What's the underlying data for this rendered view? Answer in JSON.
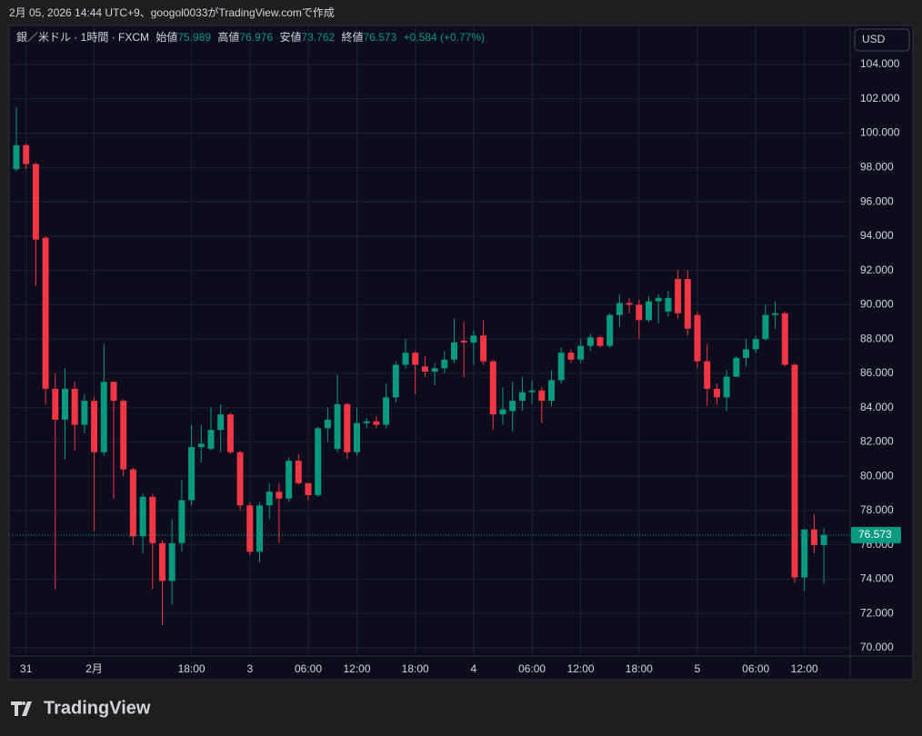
{
  "header": {
    "caption": "2月 05, 2026 14:44 UTC+9、googol0033がTradingView.comで作成",
    "logo": "TradingView"
  },
  "chart_data": {
    "type": "candlestick",
    "title": "銀／米ドル · 1時間 · FXCM",
    "legend_labels": {
      "open": "始値",
      "high": "高値",
      "low": "安値",
      "close": "終値"
    },
    "change": "+0.584 (+0.77%)",
    "currency": "USD",
    "up_color": "#089981",
    "down_color": "#f23645",
    "grid": true,
    "categories": [
      null,
      "31",
      null,
      null,
      null,
      null,
      null,
      null,
      "2月",
      null,
      null,
      null,
      null,
      null,
      null,
      null,
      null,
      null,
      "18:00",
      null,
      null,
      null,
      null,
      null,
      "3",
      null,
      null,
      null,
      null,
      null,
      "06:00",
      null,
      null,
      null,
      null,
      "12:00",
      null,
      null,
      null,
      null,
      null,
      "18:00",
      null,
      null,
      null,
      null,
      null,
      "4",
      null,
      null,
      null,
      null,
      null,
      "06:00",
      null,
      null,
      null,
      null,
      "12:00",
      null,
      null,
      null,
      null,
      null,
      "18:00",
      null,
      null,
      null,
      null,
      null,
      "5",
      null,
      null,
      null,
      null,
      null,
      "06:00",
      null,
      null,
      null,
      null,
      "12:00",
      null,
      null
    ],
    "open": [
      97.9,
      99.3,
      98.2,
      93.9,
      85.1,
      83.3,
      85.1,
      83.0,
      84.4,
      81.4,
      85.5,
      84.4,
      80.4,
      76.5,
      78.8,
      76.1,
      73.9,
      76.1,
      78.6,
      81.7,
      81.6,
      82.7,
      83.6,
      81.4,
      78.3,
      75.6,
      78.3,
      79.1,
      78.7,
      80.9,
      79.6,
      78.9,
      82.8,
      81.6,
      84.2,
      81.4,
      83.1,
      83.2,
      83.0,
      84.6,
      86.5,
      87.2,
      86.4,
      86.1,
      86.3,
      86.8,
      87.9,
      87.8,
      88.2,
      86.7,
      83.6,
      83.8,
      84.4,
      84.9,
      85.0,
      84.4,
      85.6,
      87.2,
      86.8,
      87.6,
      88.1,
      87.6,
      89.4,
      90.1,
      90.0,
      89.1,
      90.2,
      89.6,
      91.5,
      91.5,
      89.4,
      86.7,
      85.1,
      84.6,
      85.8,
      86.9,
      87.4,
      88.0,
      89.4,
      89.5,
      86.5,
      74.1,
      76.9,
      75.989
    ],
    "high": [
      101.5,
      99.4,
      98.3,
      94.0,
      86.0,
      86.3,
      85.5,
      84.8,
      84.6,
      87.7,
      85.5,
      84.5,
      80.5,
      79.0,
      79.0,
      76.3,
      77.5,
      79.8,
      83.0,
      83.0,
      84.0,
      84.2,
      83.7,
      81.5,
      78.5,
      78.5,
      79.6,
      79.6,
      81.1,
      81.3,
      79.6,
      82.9,
      84.0,
      85.9,
      84.3,
      84.0,
      83.4,
      83.5,
      85.4,
      86.7,
      88.0,
      87.3,
      87.0,
      86.6,
      87.3,
      89.2,
      89.0,
      88.5,
      89.1,
      86.8,
      85.2,
      85.5,
      85.8,
      85.6,
      85.2,
      86.2,
      87.5,
      87.4,
      88.0,
      88.3,
      88.2,
      89.5,
      90.6,
      90.4,
      90.3,
      90.5,
      90.6,
      90.8,
      92.0,
      92.0,
      89.6,
      87.7,
      85.4,
      86.2,
      87.0,
      88.0,
      88.2,
      90.0,
      90.2,
      89.6,
      86.6,
      76.9,
      77.8,
      76.976
    ],
    "low": [
      97.8,
      97.9,
      91.1,
      84.2,
      73.4,
      81.0,
      81.5,
      82.5,
      76.8,
      81.2,
      78.7,
      80.0,
      76.0,
      75.5,
      73.4,
      71.3,
      72.5,
      75.6,
      78.3,
      80.8,
      81.5,
      81.4,
      81.3,
      78.0,
      75.4,
      75.0,
      77.5,
      76.1,
      78.5,
      79.5,
      78.6,
      78.8,
      82.0,
      81.4,
      81.0,
      81.2,
      82.8,
      82.8,
      82.8,
      84.3,
      86.3,
      84.8,
      85.8,
      85.3,
      86.0,
      86.6,
      85.8,
      86.5,
      86.5,
      82.7,
      83.0,
      82.6,
      83.8,
      84.2,
      83.1,
      84.1,
      85.4,
      86.6,
      86.6,
      87.3,
      87.5,
      87.5,
      88.7,
      89.5,
      88.0,
      89.0,
      88.9,
      89.3,
      89.2,
      88.2,
      86.3,
      84.1,
      84.2,
      83.8,
      85.8,
      86.4,
      87.2,
      87.9,
      88.6,
      86.4,
      73.8,
      73.3,
      75.5,
      73.762
    ],
    "close": [
      99.3,
      98.2,
      93.8,
      85.1,
      83.3,
      85.1,
      83.0,
      84.4,
      81.4,
      85.5,
      84.4,
      80.4,
      76.5,
      78.8,
      76.1,
      73.9,
      76.1,
      78.6,
      81.7,
      81.9,
      82.7,
      83.6,
      81.4,
      78.3,
      75.6,
      78.3,
      79.1,
      78.7,
      80.9,
      79.6,
      78.9,
      82.8,
      83.3,
      84.2,
      81.4,
      83.1,
      83.2,
      83.0,
      84.6,
      86.5,
      87.2,
      86.5,
      86.1,
      86.3,
      86.8,
      87.8,
      87.8,
      88.2,
      86.7,
      83.6,
      83.9,
      84.4,
      84.9,
      85.0,
      84.4,
      85.6,
      87.2,
      86.8,
      87.6,
      88.1,
      87.6,
      89.4,
      90.1,
      90.0,
      89.1,
      90.2,
      90.4,
      90.4,
      89.5,
      88.6,
      86.7,
      85.1,
      84.6,
      85.8,
      86.9,
      87.4,
      88.0,
      89.4,
      89.5,
      86.5,
      74.1,
      76.9,
      75.989,
      76.573
    ],
    "ylim": [
      69.52,
      106.28
    ],
    "yticks": [
      {
        "value": 70,
        "label": "70.000"
      },
      {
        "value": 72,
        "label": "72.000"
      },
      {
        "value": 74,
        "label": "74.000"
      },
      {
        "value": 76,
        "label": "76.000"
      },
      {
        "value": 78,
        "label": "78.000"
      },
      {
        "value": 80,
        "label": "80.000"
      },
      {
        "value": 82,
        "label": "82.000"
      },
      {
        "value": 84,
        "label": "84.000"
      },
      {
        "value": 86,
        "label": "86.000"
      },
      {
        "value": 88,
        "label": "88.000"
      },
      {
        "value": 90,
        "label": "90.000"
      },
      {
        "value": 92,
        "label": "92.000"
      },
      {
        "value": 94,
        "label": "94.000"
      },
      {
        "value": 96,
        "label": "96.000"
      },
      {
        "value": 98,
        "label": "98.000"
      },
      {
        "value": 100,
        "label": "100.000"
      },
      {
        "value": 102,
        "label": "102.000"
      },
      {
        "value": 104,
        "label": "104.000"
      }
    ]
  }
}
